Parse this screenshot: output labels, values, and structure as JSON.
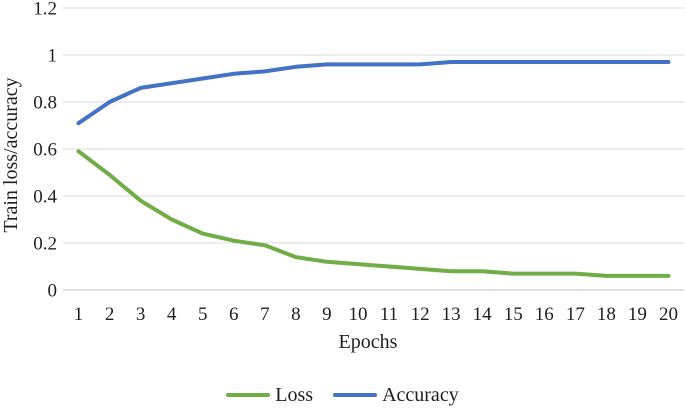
{
  "figure": {
    "background_color": "#ffffff",
    "text_color": "#1f1f1f"
  },
  "chart_data": {
    "type": "line",
    "title": "",
    "xlabel": "Epochs",
    "ylabel": "Train loss/accuracy",
    "categories": [
      "1",
      "2",
      "3",
      "4",
      "5",
      "6",
      "7",
      "8",
      "9",
      "10",
      "11",
      "12",
      "13",
      "14",
      "15",
      "16",
      "17",
      "18",
      "19",
      "20"
    ],
    "series": [
      {
        "name": "Loss",
        "color": "#70AD47",
        "values": [
          0.59,
          0.49,
          0.38,
          0.3,
          0.24,
          0.21,
          0.19,
          0.14,
          0.12,
          0.11,
          0.1,
          0.09,
          0.08,
          0.08,
          0.07,
          0.07,
          0.07,
          0.06,
          0.06,
          0.06
        ]
      },
      {
        "name": "Accuracy",
        "color": "#4472C4",
        "values": [
          0.71,
          0.8,
          0.86,
          0.88,
          0.9,
          0.92,
          0.93,
          0.95,
          0.96,
          0.96,
          0.96,
          0.96,
          0.97,
          0.97,
          0.97,
          0.97,
          0.97,
          0.97,
          0.97,
          0.97
        ]
      }
    ],
    "ylim": [
      0,
      1.2
    ],
    "y_ticks": [
      0,
      0.2,
      0.4,
      0.6,
      0.8,
      1,
      1.2
    ],
    "y_tick_labels": [
      "0",
      "0.2",
      "0.4",
      "0.6",
      "0.8",
      "1",
      "1.2"
    ],
    "grid": "horizontal",
    "gridline_color": "#D9D9D9",
    "axis_line_color": "#BFBFBF",
    "legend_position": "bottom"
  }
}
